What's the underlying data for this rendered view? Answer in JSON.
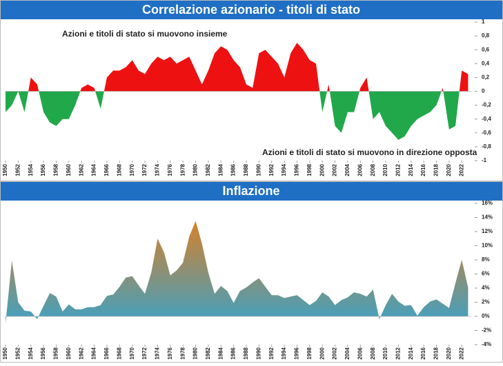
{
  "chart_data": [
    {
      "type": "area",
      "title": "Correlazione azionario - titoli di stato",
      "annotations": [
        {
          "text": "Azioni e titoli di stato si muovono insieme",
          "color": "#ee1111"
        },
        {
          "text": "Azioni e titoli di stato si muovono in direzione opposta",
          "color": "#21a84a"
        }
      ],
      "colors": {
        "positive": "#ee1111",
        "negative": "#21a84a"
      },
      "x": [
        1950,
        1951,
        1952,
        1953,
        1954,
        1955,
        1956,
        1957,
        1958,
        1959,
        1960,
        1961,
        1962,
        1963,
        1964,
        1965,
        1966,
        1967,
        1968,
        1969,
        1970,
        1971,
        1972,
        1973,
        1974,
        1975,
        1976,
        1977,
        1978,
        1979,
        1980,
        1981,
        1982,
        1983,
        1984,
        1985,
        1986,
        1987,
        1988,
        1989,
        1990,
        1991,
        1992,
        1993,
        1994,
        1995,
        1996,
        1997,
        1998,
        1999,
        2000,
        2001,
        2002,
        2003,
        2004,
        2005,
        2006,
        2007,
        2008,
        2009,
        2010,
        2011,
        2012,
        2013,
        2014,
        2015,
        2016,
        2017,
        2018,
        2019,
        2020,
        2021,
        2022,
        2023
      ],
      "values": [
        -0.3,
        -0.2,
        0.0,
        -0.3,
        0.2,
        0.1,
        -0.3,
        -0.45,
        -0.5,
        -0.4,
        -0.4,
        -0.2,
        0.05,
        0.1,
        0.05,
        -0.25,
        0.2,
        0.3,
        0.3,
        0.35,
        0.45,
        0.3,
        0.25,
        0.4,
        0.5,
        0.45,
        0.5,
        0.4,
        0.45,
        0.5,
        0.3,
        0.1,
        0.3,
        0.55,
        0.65,
        0.6,
        0.45,
        0.35,
        0.1,
        0.05,
        0.55,
        0.6,
        0.5,
        0.4,
        0.2,
        0.55,
        0.7,
        0.6,
        0.45,
        0.4,
        -0.3,
        0.1,
        -0.5,
        -0.6,
        -0.3,
        -0.3,
        0.05,
        0.2,
        -0.4,
        -0.3,
        -0.5,
        -0.6,
        -0.7,
        -0.65,
        -0.5,
        -0.4,
        -0.35,
        -0.3,
        -0.2,
        0.05,
        -0.55,
        -0.5,
        0.3,
        0.25
      ],
      "xlim": [
        1950,
        2023.5
      ],
      "xticks": [
        1950,
        1952,
        1954,
        1956,
        1958,
        1960,
        1962,
        1964,
        1966,
        1968,
        1970,
        1972,
        1974,
        1976,
        1978,
        1980,
        1982,
        1984,
        1986,
        1988,
        1990,
        1992,
        1994,
        1996,
        1998,
        2000,
        2002,
        2004,
        2006,
        2008,
        2010,
        2012,
        2014,
        2016,
        2018,
        2020,
        2022
      ],
      "ylim": [
        -1,
        1
      ],
      "yticks": [
        1,
        {
          "value": 0.8,
          "label": "0,8"
        },
        {
          "value": 0.6,
          "label": "0,6"
        },
        {
          "value": 0.4,
          "label": "0,4"
        },
        {
          "value": 0.2,
          "label": "0,2"
        },
        0,
        {
          "value": -0.2,
          "label": "-0,2"
        },
        {
          "value": -0.4,
          "label": "-0,4"
        },
        {
          "value": -0.6,
          "label": "-0,6"
        },
        {
          "value": -0.8,
          "label": "-0,8"
        },
        -1
      ]
    },
    {
      "type": "area",
      "title": "Inflazione",
      "colors": {
        "top": "#f07a10",
        "bottom": "#4a9fb8"
      },
      "x": [
        1950,
        1951,
        1952,
        1953,
        1954,
        1955,
        1956,
        1957,
        1958,
        1959,
        1960,
        1961,
        1962,
        1963,
        1964,
        1965,
        1966,
        1967,
        1968,
        1969,
        1970,
        1971,
        1972,
        1973,
        1974,
        1975,
        1976,
        1977,
        1978,
        1979,
        1980,
        1981,
        1982,
        1983,
        1984,
        1985,
        1986,
        1987,
        1988,
        1989,
        1990,
        1991,
        1992,
        1993,
        1994,
        1995,
        1996,
        1997,
        1998,
        1999,
        2000,
        2001,
        2002,
        2003,
        2004,
        2005,
        2006,
        2007,
        2008,
        2009,
        2010,
        2011,
        2012,
        2013,
        2014,
        2015,
        2016,
        2017,
        2018,
        2019,
        2020,
        2021,
        2022,
        2023
      ],
      "values": [
        -1,
        7.9,
        2,
        0.8,
        0.7,
        -0.4,
        1.5,
        3.3,
        2.8,
        0.7,
        1.7,
        1.0,
        1.0,
        1.3,
        1.3,
        1.6,
        2.9,
        3.1,
        4.2,
        5.5,
        5.7,
        4.4,
        3.2,
        6.2,
        11,
        9.1,
        5.8,
        6.5,
        7.6,
        11.3,
        13.5,
        10.3,
        6.2,
        3.2,
        4.3,
        3.6,
        1.9,
        3.6,
        4.1,
        4.8,
        5.4,
        4.2,
        3.0,
        3.0,
        2.6,
        2.8,
        3.0,
        2.3,
        1.6,
        2.2,
        3.4,
        2.8,
        1.6,
        2.3,
        2.7,
        3.4,
        3.2,
        2.8,
        3.8,
        -0.4,
        1.6,
        3.2,
        2.1,
        1.5,
        1.6,
        0.1,
        1.3,
        2.1,
        2.4,
        1.8,
        1.2,
        4.7,
        8.0,
        4.1
      ],
      "xlim": [
        1950,
        2023.5
      ],
      "xticks": [
        1950,
        1952,
        1954,
        1956,
        1958,
        1960,
        1962,
        1964,
        1966,
        1968,
        1970,
        1972,
        1974,
        1976,
        1978,
        1980,
        1982,
        1984,
        1986,
        1988,
        1990,
        1992,
        1994,
        1996,
        1998,
        2000,
        2002,
        2004,
        2006,
        2008,
        2010,
        2012,
        2014,
        2016,
        2018,
        2020,
        2022
      ],
      "ylim": [
        -4,
        16
      ],
      "yticks": [
        {
          "value": 16,
          "label": "16%"
        },
        {
          "value": 14,
          "label": "14%"
        },
        {
          "value": 12,
          "label": "12%"
        },
        {
          "value": 10,
          "label": "10%"
        },
        {
          "value": 8,
          "label": "8%"
        },
        {
          "value": 6,
          "label": "6%"
        },
        {
          "value": 4,
          "label": "4%"
        },
        {
          "value": 2,
          "label": "2%"
        },
        {
          "value": 0,
          "label": "0%"
        },
        {
          "value": -2,
          "label": "-2%"
        },
        {
          "value": -4,
          "label": "-4%"
        }
      ]
    }
  ]
}
